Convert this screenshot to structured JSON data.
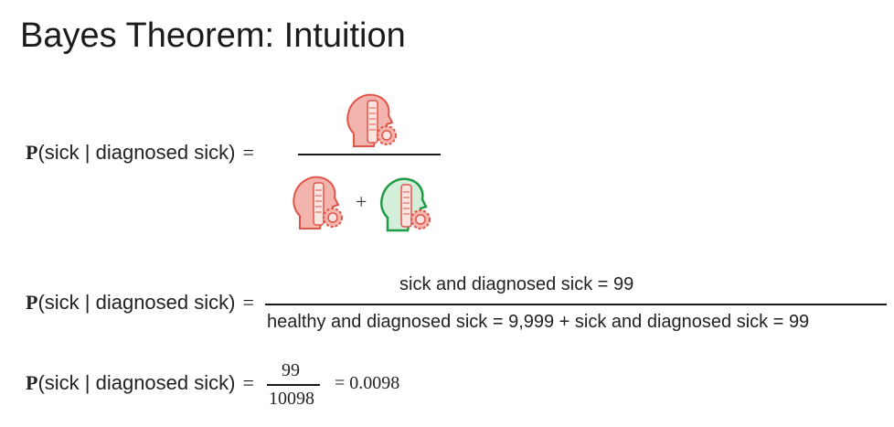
{
  "slide": {
    "title": "Bayes Theorem: Intuition"
  },
  "eq1": {
    "lhs_p": "P",
    "lhs_rest": "(sick | diagnosed sick)",
    "equals": "=",
    "plus": "+",
    "numerator_icon": "sick-diagnosed-sick-head-icon",
    "denominator_icons": [
      "sick-diagnosed-sick-head-icon",
      "healthy-diagnosed-sick-head-icon"
    ],
    "colors": {
      "sick_fill": "#f4b4ae",
      "sick_stroke": "#e0554a",
      "healthy_fill": "#d4efd9",
      "healthy_stroke": "#1f9a45"
    }
  },
  "eq2": {
    "lhs_p": "P",
    "lhs_rest": "(sick | diagnosed sick)",
    "equals": "=",
    "numerator": "sick and diagnosed sick = 99",
    "denominator": "healthy and diagnosed sick = 9,999 + sick and diagnosed sick = 99"
  },
  "eq3": {
    "lhs_p": "P",
    "lhs_rest": "(sick | diagnosed sick)",
    "equals": "=",
    "numerator": "99",
    "denominator": "10098",
    "result": "= 0.0098"
  }
}
